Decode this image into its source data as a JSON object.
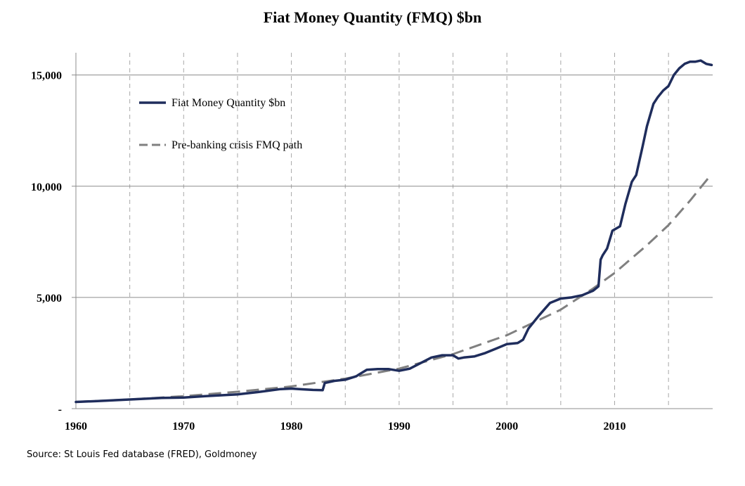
{
  "chart_data": {
    "type": "line",
    "title": "Fiat Money Quantity (FMQ)  $bn",
    "xlabel": "",
    "ylabel": "",
    "xlim": [
      1960,
      2019.1
    ],
    "ylim": [
      0,
      16000
    ],
    "x_ticks": [
      1960,
      1970,
      1980,
      1990,
      2000,
      2010
    ],
    "x_tick_labels": [
      "1960",
      "1970",
      "1980",
      "1990",
      "2000",
      "2010"
    ],
    "y_ticks": [
      0,
      5000,
      10000,
      15000
    ],
    "y_tick_labels": [
      "-",
      "5,000",
      "10,000",
      "15,000"
    ],
    "vertical_gridlines_dashed": [
      1965,
      1970,
      1975,
      1980,
      1985,
      1990,
      1995,
      2000,
      2005,
      2010,
      2015
    ],
    "horizontal_gridlines": [
      5000,
      10000,
      15000
    ],
    "legend_position": "upper-left",
    "series": [
      {
        "name": "Fiat Money Quantity $bn",
        "color": "#1f2d5c",
        "style": "solid",
        "x": [
          1960,
          1962,
          1965,
          1968,
          1970,
          1972,
          1975,
          1977,
          1979,
          1980,
          1981,
          1982,
          1982.9,
          1983.1,
          1984,
          1985,
          1986,
          1987,
          1988,
          1989,
          1990,
          1991,
          1992,
          1993,
          1994,
          1995,
          1995.5,
          1996,
          1997,
          1998,
          1999,
          2000,
          2001,
          2001.5,
          2002,
          2003,
          2004,
          2005,
          2006,
          2007,
          2007.5,
          2008,
          2008.5,
          2008.7,
          2008.9,
          2009.3,
          2009.8,
          2010.5,
          2011,
          2011.6,
          2012,
          2012.6,
          2013,
          2013.6,
          2014,
          2014.5,
          2015,
          2015.5,
          2016,
          2016.5,
          2017,
          2017.5,
          2018,
          2018.5,
          2019
        ],
        "values": [
          300,
          340,
          410,
          480,
          500,
          560,
          640,
          750,
          880,
          900,
          870,
          840,
          830,
          1150,
          1250,
          1300,
          1450,
          1750,
          1780,
          1780,
          1700,
          1800,
          2050,
          2300,
          2400,
          2400,
          2250,
          2300,
          2350,
          2500,
          2700,
          2900,
          2950,
          3100,
          3600,
          4200,
          4750,
          4950,
          5000,
          5100,
          5200,
          5300,
          5500,
          6700,
          6900,
          7200,
          8000,
          8200,
          9200,
          10200,
          10500,
          11800,
          12700,
          13700,
          14000,
          14300,
          14500,
          15000,
          15300,
          15500,
          15600,
          15600,
          15650,
          15500,
          15450
        ]
      },
      {
        "name": "Pre-banking crisis FMQ path",
        "color": "#808080",
        "style": "dashed",
        "x": [
          1960,
          1965,
          1970,
          1975,
          1980,
          1985,
          1990,
          1995,
          2000,
          2005,
          2008,
          2010,
          2013,
          2015,
          2017,
          2019
        ],
        "values": [
          300,
          410,
          560,
          760,
          1000,
          1350,
          1800,
          2450,
          3300,
          4450,
          5400,
          6100,
          7350,
          8250,
          9350,
          10550
        ]
      }
    ]
  },
  "source": "Source: St Louis Fed  database (FRED), Goldmoney"
}
